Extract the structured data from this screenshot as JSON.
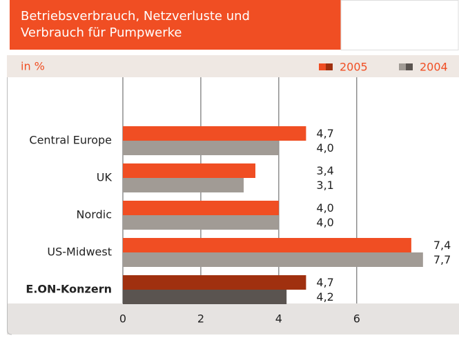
{
  "chart_data": {
    "type": "hbar",
    "title": [
      "Betriebsverbrauch, Netzverluste und",
      "Verbrauch für Pumpwerke"
    ],
    "unit_label": "in %",
    "categories": [
      "Central Europe",
      "UK",
      "Nordic",
      "US-Midwest",
      "E.ON-Konzern"
    ],
    "series": [
      {
        "name": "2005",
        "color": "#f04e23",
        "colors": [
          "#f04e23",
          "#f04e23",
          "#f04e23",
          "#f04e23",
          "#a0300f"
        ],
        "values": [
          4.7,
          3.4,
          4.0,
          7.4,
          4.7
        ],
        "value_labels": [
          "4,7",
          "3,4",
          "4,0",
          "7,4",
          "4,7"
        ]
      },
      {
        "name": "2004",
        "color": "#a19b95",
        "colors": [
          "#a19b95",
          "#a19b95",
          "#a19b95",
          "#a19b95",
          "#5a5450"
        ],
        "values": [
          4.0,
          3.1,
          4.0,
          7.7,
          4.2
        ],
        "value_labels": [
          "4,0",
          "3,1",
          "4,0",
          "7,7",
          "4,2"
        ]
      }
    ],
    "xlim": [
      0,
      8.5
    ],
    "xticks": [
      0,
      2,
      4,
      6
    ],
    "grid": true
  }
}
